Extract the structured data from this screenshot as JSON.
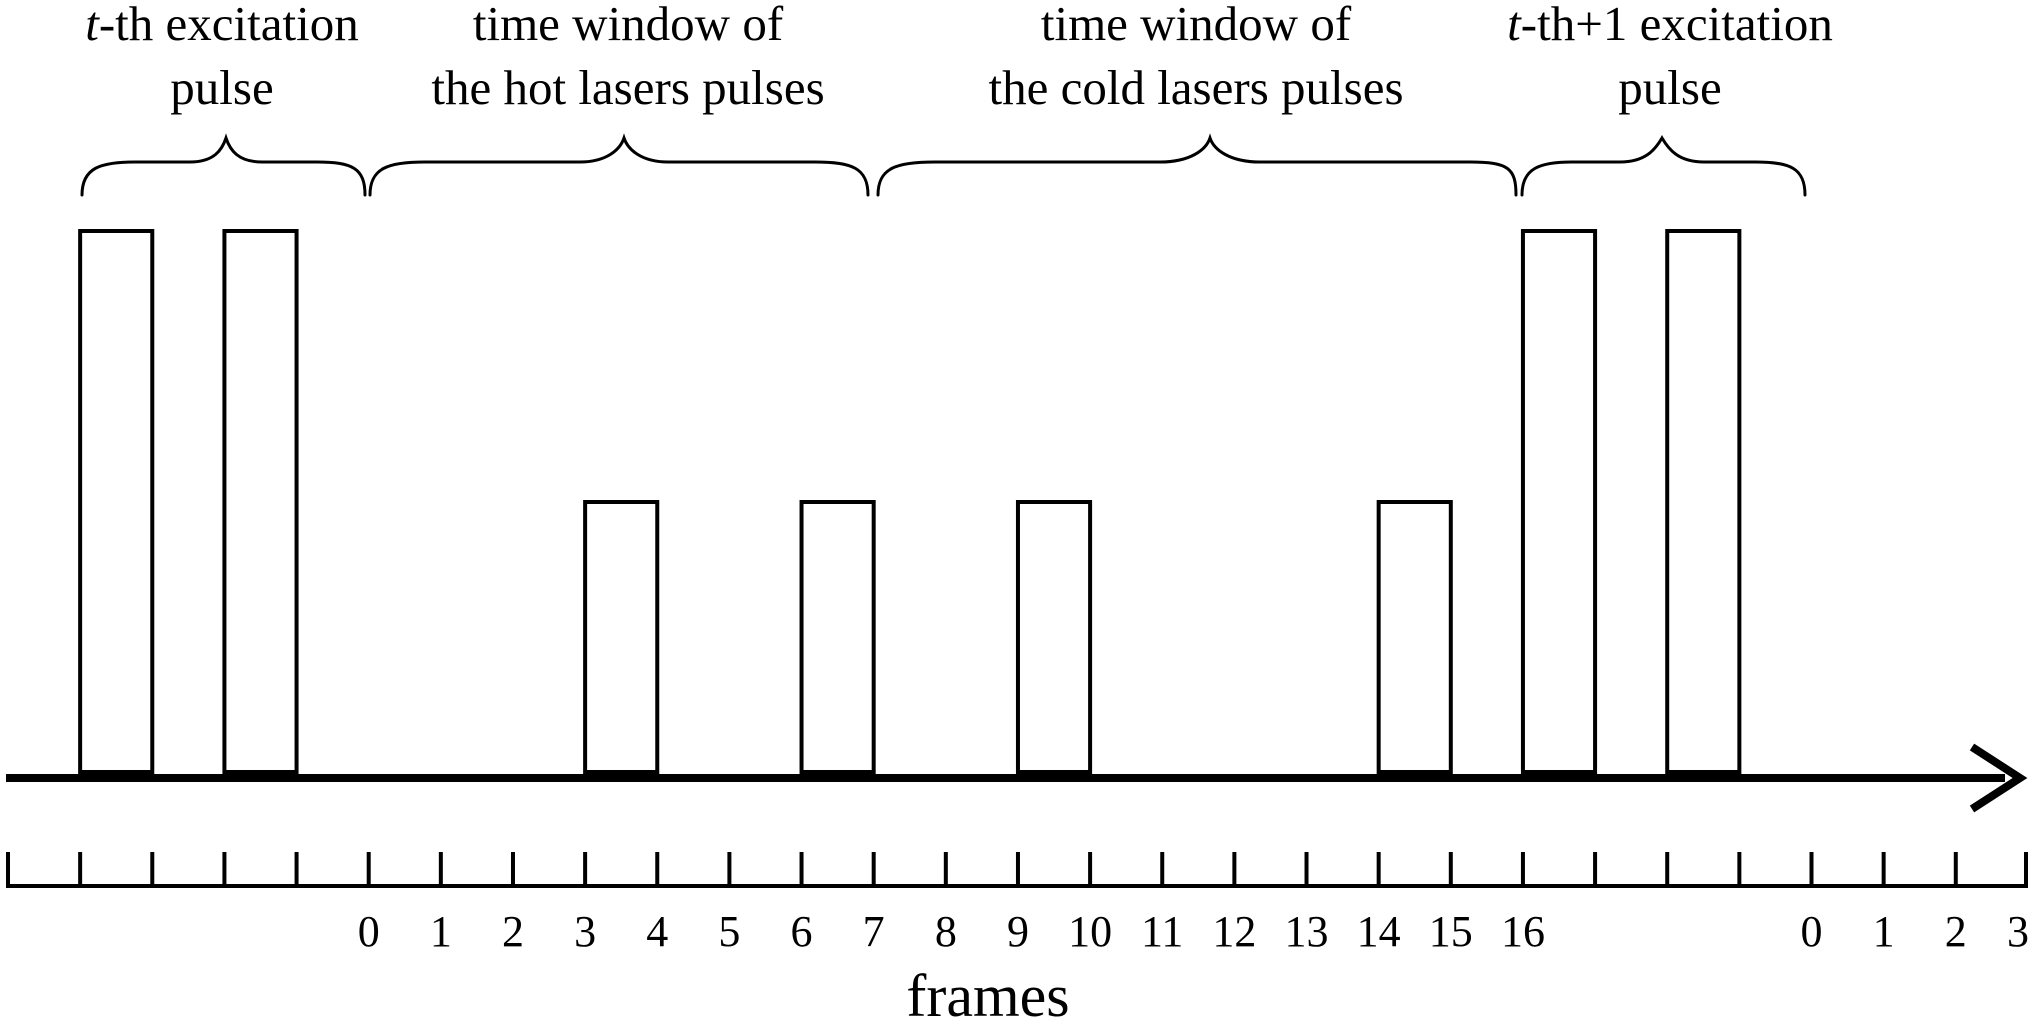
{
  "windows": [
    {
      "name": "t-th excitation pulse",
      "line1_italic": "t",
      "line1_rest": "-th excitation",
      "line2": "pulse"
    },
    {
      "name": "hot lasers window",
      "line1_italic": "",
      "line1_rest": "time window of",
      "line2": "the hot lasers pulses"
    },
    {
      "name": "cold lasers window",
      "line1_italic": "",
      "line1_rest": "time window of",
      "line2": "the cold lasers pulses"
    },
    {
      "name": "t-th+1 excitation pulse",
      "line1_italic": "t",
      "line1_rest": "-th+1 excitation",
      "line2": "pulse"
    }
  ],
  "pulses": [
    {
      "tick": 1,
      "level": "high"
    },
    {
      "tick": 3,
      "level": "high"
    },
    {
      "tick": 8,
      "level": "low"
    },
    {
      "tick": 11,
      "level": "low"
    },
    {
      "tick": 14,
      "level": "low"
    },
    {
      "tick": 19,
      "level": "low"
    },
    {
      "tick": 21,
      "level": "high"
    },
    {
      "tick": 23,
      "level": "high"
    }
  ],
  "tick_count": 29,
  "tick_labels": [
    {
      "tick": 5,
      "text": "0"
    },
    {
      "tick": 6,
      "text": "1"
    },
    {
      "tick": 7,
      "text": "2"
    },
    {
      "tick": 8,
      "text": "3"
    },
    {
      "tick": 9,
      "text": "4"
    },
    {
      "tick": 10,
      "text": "5"
    },
    {
      "tick": 11,
      "text": "6"
    },
    {
      "tick": 12,
      "text": "7"
    },
    {
      "tick": 13,
      "text": "8"
    },
    {
      "tick": 14,
      "text": "9"
    },
    {
      "tick": 15,
      "text": "10"
    },
    {
      "tick": 16,
      "text": "11"
    },
    {
      "tick": 17,
      "text": "12"
    },
    {
      "tick": 18,
      "text": "13"
    },
    {
      "tick": 19,
      "text": "14"
    },
    {
      "tick": 20,
      "text": "15"
    },
    {
      "tick": 21,
      "text": "16"
    },
    {
      "tick": 25,
      "text": "0"
    },
    {
      "tick": 26,
      "text": "1"
    },
    {
      "tick": 27,
      "text": "2"
    },
    {
      "tick": 28,
      "text": "3"
    }
  ],
  "axis_title": "frames"
}
